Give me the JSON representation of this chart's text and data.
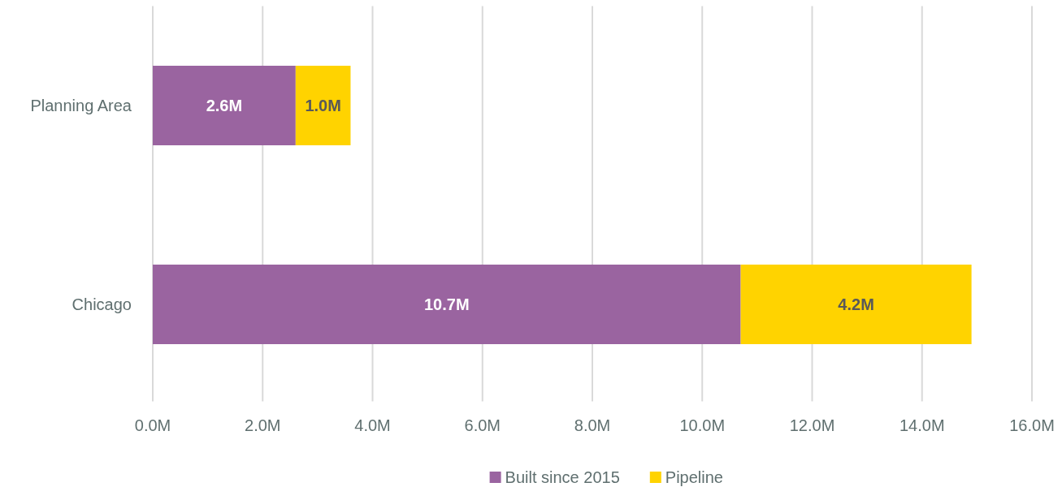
{
  "chart_data": {
    "type": "bar",
    "orientation": "horizontal",
    "stacked": true,
    "categories": [
      "Planning Area",
      "Chicago"
    ],
    "series": [
      {
        "name": "Built since 2015",
        "color": "#9a64a0",
        "values": [
          2.6,
          10.7
        ],
        "value_labels": [
          "2.6M",
          "10.7M"
        ]
      },
      {
        "name": "Pipeline",
        "color": "#ffd300",
        "values": [
          1.0,
          4.2
        ],
        "value_labels": [
          "1.0M",
          "4.2M"
        ]
      }
    ],
    "xlim": [
      0,
      16
    ],
    "xticks": [
      {
        "value": 0,
        "label": "0.0M"
      },
      {
        "value": 2,
        "label": "2.0M"
      },
      {
        "value": 4,
        "label": "4.0M"
      },
      {
        "value": 6,
        "label": "6.0M"
      },
      {
        "value": 8,
        "label": "8.0M"
      },
      {
        "value": 10,
        "label": "10.0M"
      },
      {
        "value": 12,
        "label": "12.0M"
      },
      {
        "value": 14,
        "label": "14.0M"
      },
      {
        "value": 16,
        "label": "16.0M"
      }
    ],
    "grid": "x",
    "legend": "bottom"
  }
}
